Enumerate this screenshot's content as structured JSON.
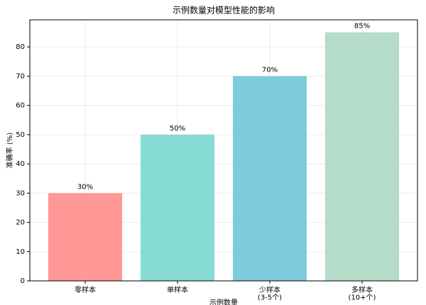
{
  "chart_data": {
    "type": "bar",
    "title": "示例数量对模型性能的影响",
    "xlabel": "示例数量",
    "ylabel": "准确率 (%)",
    "categories": [
      "零样本",
      "单样本",
      "少样本\n(3-5个)",
      "多样本\n(10+个)"
    ],
    "values": [
      30,
      50,
      70,
      85
    ],
    "value_labels": [
      "30%",
      "50%",
      "70%",
      "85%"
    ],
    "colors": [
      "#ff9896",
      "#86dbd3",
      "#7ecbdb",
      "#b4dcc9"
    ],
    "ylim": [
      0,
      89.25
    ],
    "yticks": [
      0,
      10,
      20,
      30,
      40,
      50,
      60,
      70,
      80
    ],
    "grid": true
  }
}
